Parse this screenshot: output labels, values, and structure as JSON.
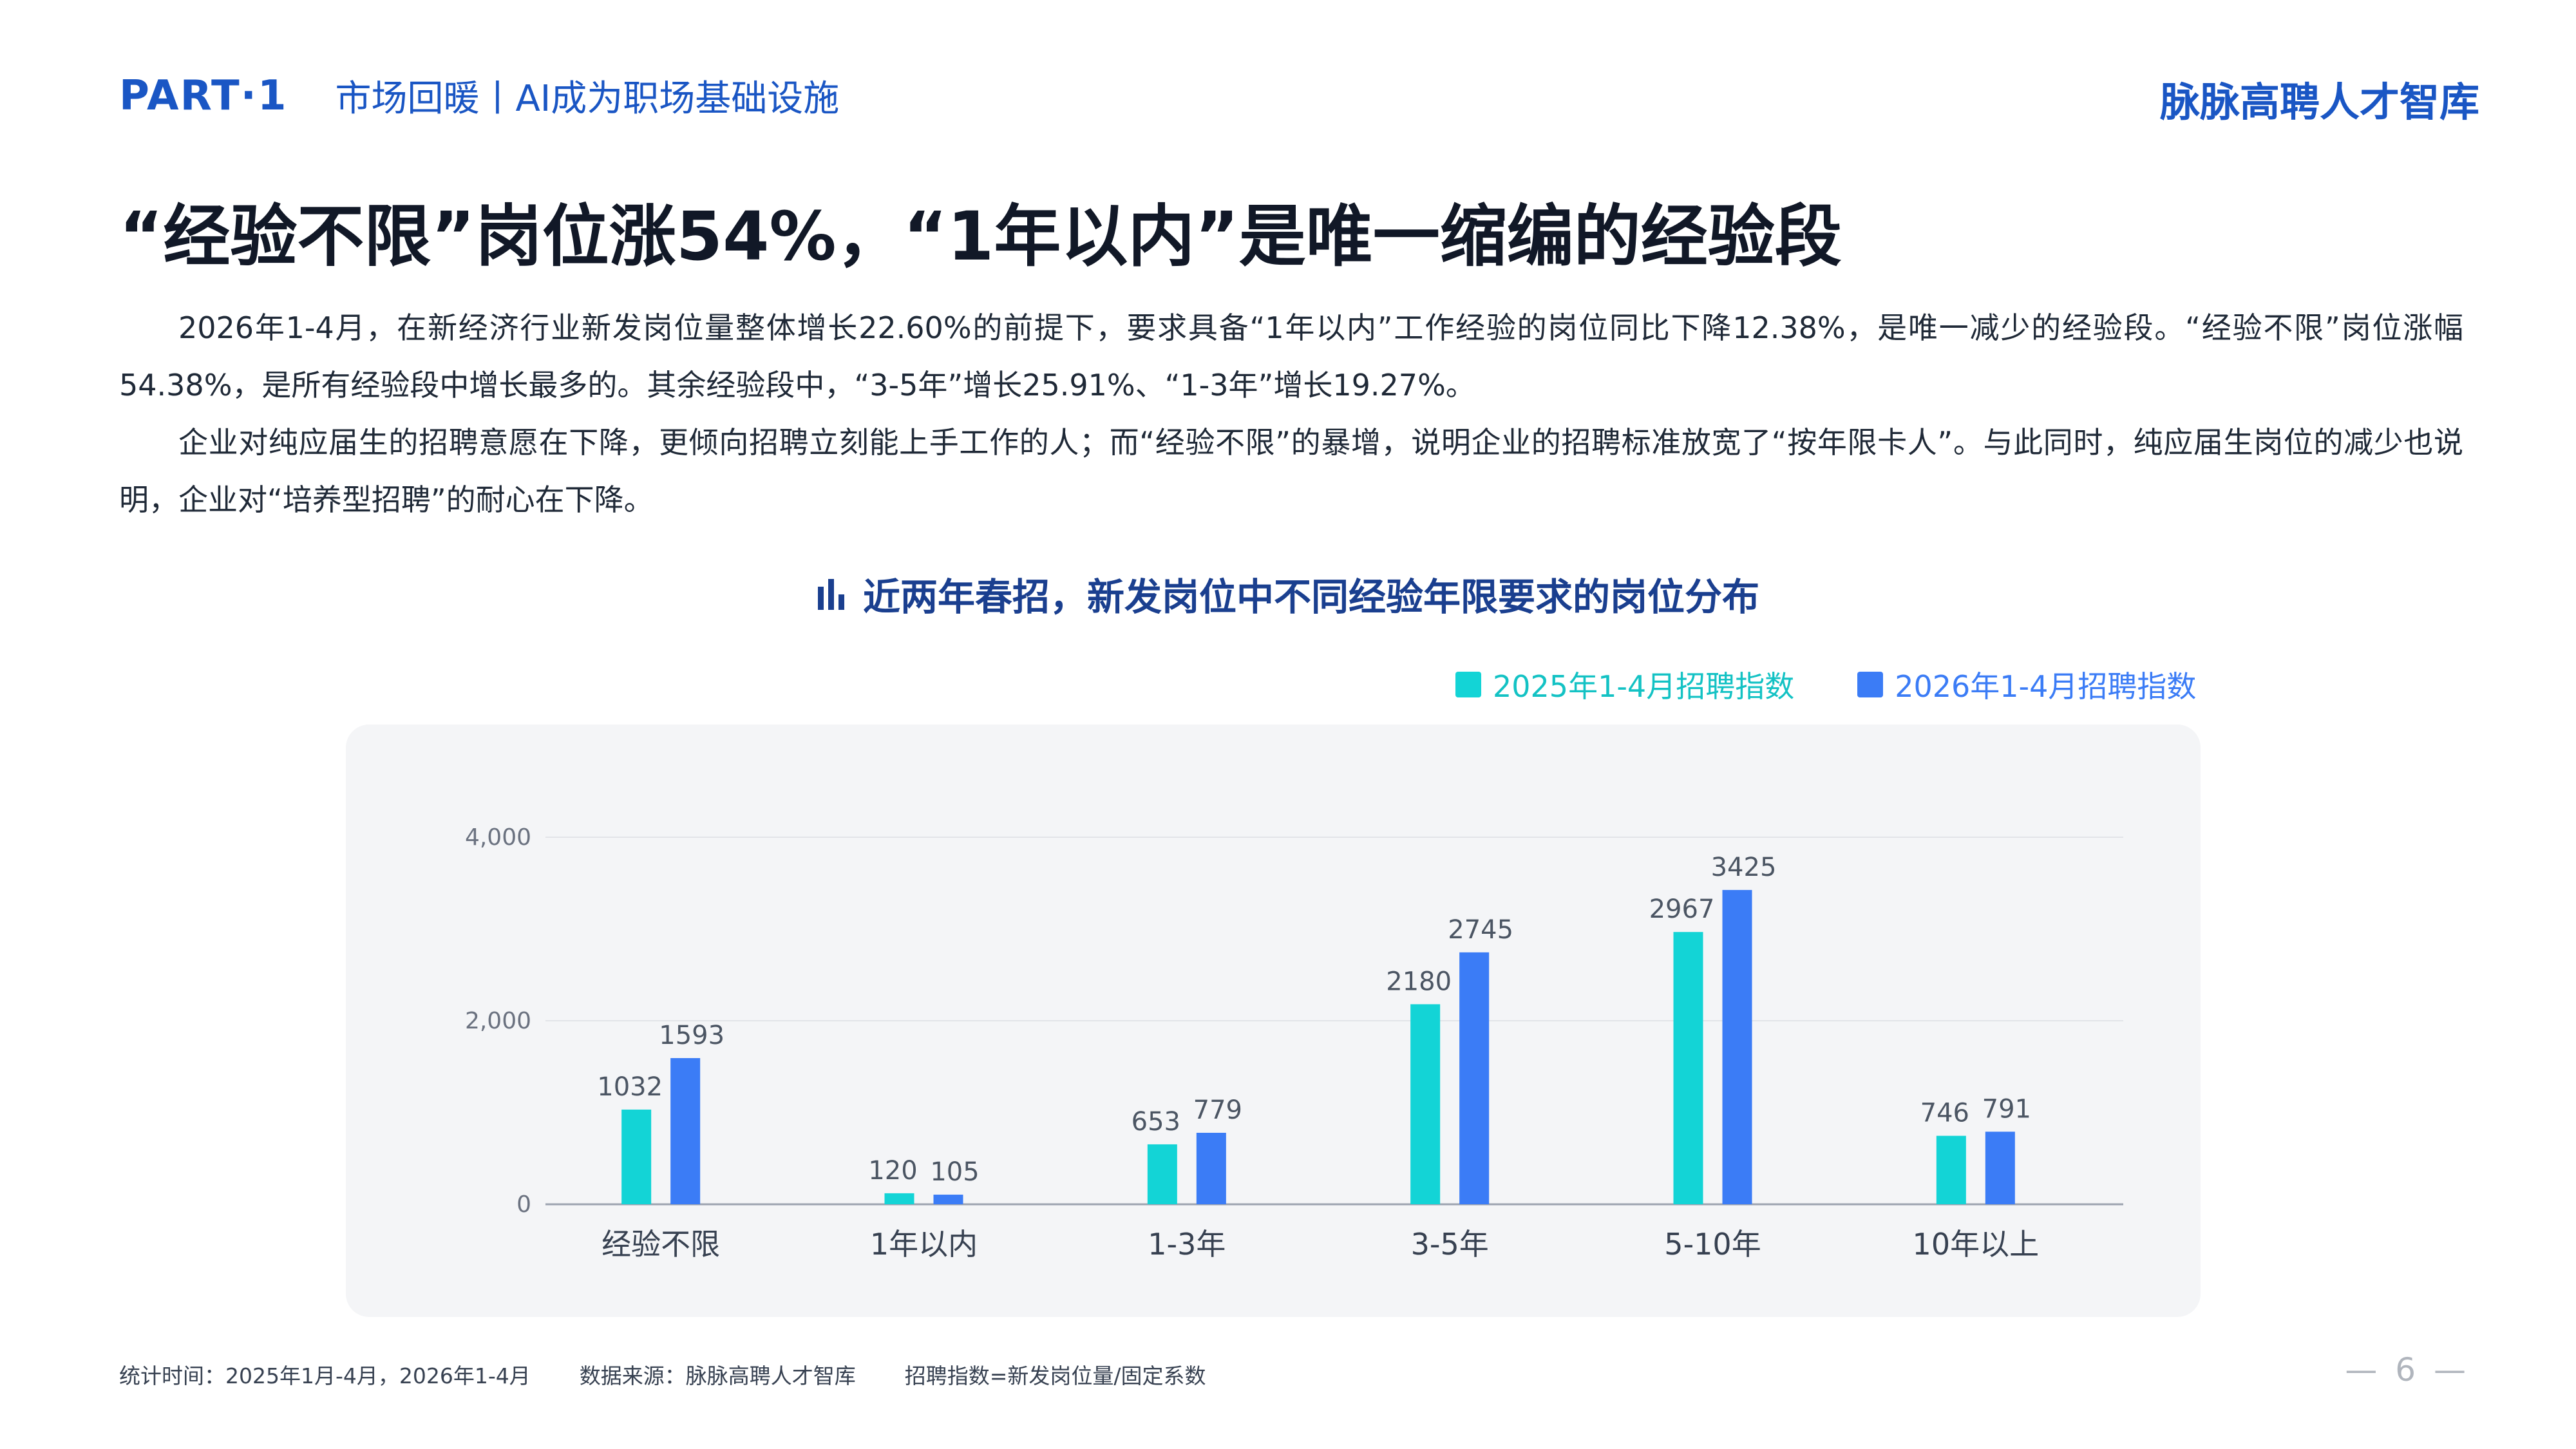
{
  "header": {
    "part_label": "PART·1",
    "section_title": "市场回暖丨AI成为职场基础设施",
    "brand": "脉脉高聘人才智库"
  },
  "headline": "“经验不限”岗位涨54%，“1年以内”是唯一缩编的经验段",
  "paragraphs": [
    "2026年1-4月，在新经济行业新发岗位量整体增长22.60%的前提下，要求具备“1年以内”工作经验的岗位同比下降12.38%，是唯一减少的经验段。“经验不限”岗位涨幅54.38%，是所有经验段中增长最多的。其余经验段中，“3-5年”增长25.91%、“1-3年”增长19.27%。",
    "企业对纯应届生的招聘意愿在下降，更倾向招聘立刻能上手工作的人；而“经验不限”的暴增，说明企业的招聘标准放宽了“按年限卡人”。与此同时，纯应届生岗位的减少也说明，企业对“培养型招聘”的耐心在下降。"
  ],
  "chart_title": "近两年春招，新发岗位中不同经验年限要求的岗位分布",
  "chart_icon": "bar-chart-icon",
  "chart_data": {
    "type": "bar",
    "title": "近两年春招，新发岗位中不同经验年限要求的岗位分布",
    "categories": [
      "经验不限",
      "1年以内",
      "1-3年",
      "3-5年",
      "5-10年",
      "10年以上"
    ],
    "series": [
      {
        "name": "2025年1-4月招聘指数",
        "values": [
          1032,
          120,
          653,
          2180,
          2967,
          746
        ],
        "color": "#13d4d6"
      },
      {
        "name": "2026年1-4月招聘指数",
        "values": [
          1593,
          105,
          779,
          2745,
          3425,
          791
        ],
        "color": "#3b7cf6"
      }
    ],
    "ylim": [
      0,
      4000
    ],
    "yticks": [
      0,
      2000,
      4000
    ],
    "ytick_labels": [
      "0",
      "2,000",
      "4,000"
    ],
    "grid": true,
    "legend_position": "top-right",
    "xlabel": "",
    "ylabel": ""
  },
  "footnote": {
    "stat_time": "统计时间：2025年1月-4月，2026年1-4月",
    "source": "数据来源：脉脉高聘人才智库",
    "definition": "招聘指数=新发岗位量/固定系数"
  },
  "page_number": "— 6 —"
}
